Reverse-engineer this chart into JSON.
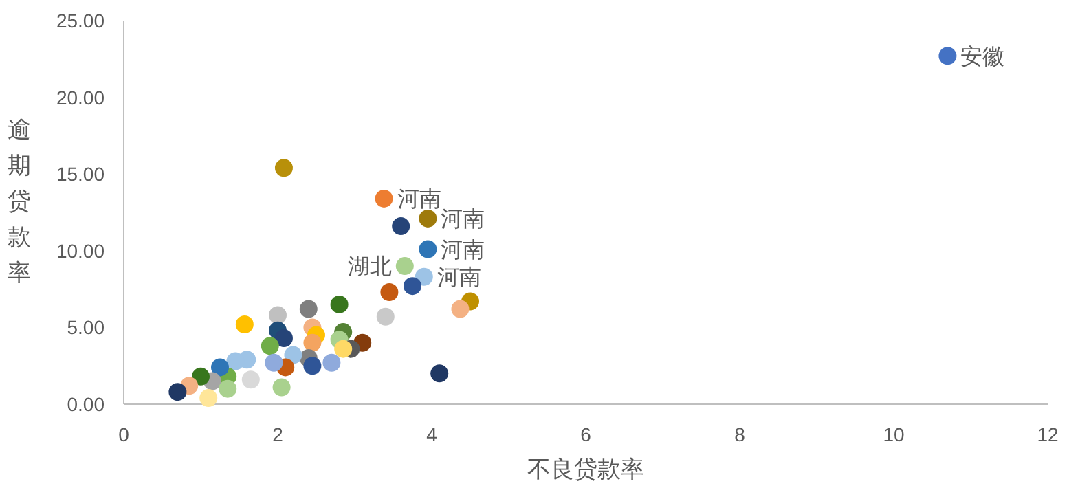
{
  "chart_data": {
    "type": "scatter",
    "xlabel": "不良贷款率",
    "ylabel": "逾期贷款率",
    "x": [
      10.7,
      2.08,
      3.38,
      3.6,
      3.95,
      3.95,
      3.65,
      3.9,
      3.75,
      3.45,
      4.5,
      4.37,
      3.4,
      4.1,
      2.8,
      2.4,
      2.0,
      1.57,
      2.0,
      2.08,
      2.45,
      2.5,
      2.45,
      2.85,
      2.8,
      3.1,
      2.95,
      2.85,
      2.7,
      2.4,
      2.45,
      2.2,
      2.1,
      2.05,
      1.9,
      1.95,
      1.6,
      1.45,
      1.35,
      1.25,
      1.15,
      1.0,
      1.1,
      0.85,
      0.7,
      1.35,
      1.65
    ],
    "values": [
      22.7,
      15.4,
      13.4,
      11.6,
      12.1,
      10.1,
      9.0,
      8.3,
      7.7,
      7.3,
      6.7,
      6.2,
      5.7,
      2.0,
      6.5,
      6.2,
      5.8,
      5.2,
      4.8,
      4.3,
      5.0,
      4.5,
      4.0,
      4.7,
      4.2,
      4.0,
      3.6,
      3.6,
      2.7,
      3.0,
      2.5,
      3.2,
      2.4,
      1.1,
      3.8,
      2.7,
      2.9,
      2.8,
      1.8,
      2.4,
      1.5,
      1.8,
      0.4,
      1.2,
      0.8,
      1.0,
      1.6
    ],
    "colors": [
      "#4472c4",
      "#b8900a",
      "#ed7d31",
      "#264478",
      "#9e7a0b",
      "#2e75b6",
      "#a9d18e",
      "#9dc3e6",
      "#2f5597",
      "#c55a11",
      "#bf9000",
      "#f4b183",
      "#c9c9c9",
      "#203864",
      "#38761d",
      "#7f7f7f",
      "#c0c0c0",
      "#ffc000",
      "#1f4e79",
      "#264478",
      "#f4b183",
      "#ffc000",
      "#f4a460",
      "#548235",
      "#a9d18e",
      "#843c0c",
      "#595959",
      "#ffd966",
      "#8faadc",
      "#7f7f7f",
      "#2f5597",
      "#9dc3e6",
      "#c55a11",
      "#a9d18e",
      "#70ad47",
      "#8faadc",
      "#9dc3e6",
      "#9dc3e6",
      "#70ad47",
      "#2e75b6",
      "#a5a5a5",
      "#38761d",
      "#ffe699",
      "#f4b183",
      "#203864",
      "#a9d18e",
      "#d9d9d9"
    ],
    "xlim": [
      0,
      12
    ],
    "xticks": [
      0,
      2,
      4,
      6,
      8,
      10,
      12
    ],
    "ylim": [
      0,
      25
    ],
    "yticks": [
      {
        "value": 0,
        "label": "0.00"
      },
      {
        "value": 5,
        "label": "5.00"
      },
      {
        "value": 10,
        "label": "10.00"
      },
      {
        "value": 15,
        "label": "15.00"
      },
      {
        "value": 20,
        "label": "20.00"
      },
      {
        "value": 25,
        "label": "25.00"
      }
    ],
    "annotations": [
      {
        "text": "安徽",
        "x": 10.7,
        "y": 22.7
      },
      {
        "text": "河南",
        "x": 3.38,
        "y": 13.4
      },
      {
        "text": "河南",
        "x": 3.95,
        "y": 12.1
      },
      {
        "text": "河南",
        "x": 3.95,
        "y": 10.1
      },
      {
        "text": "湖北",
        "x": 3.65,
        "y": 9.0
      },
      {
        "text": "河南",
        "x": 3.9,
        "y": 8.3
      }
    ],
    "marker": "circle",
    "grid": false
  }
}
